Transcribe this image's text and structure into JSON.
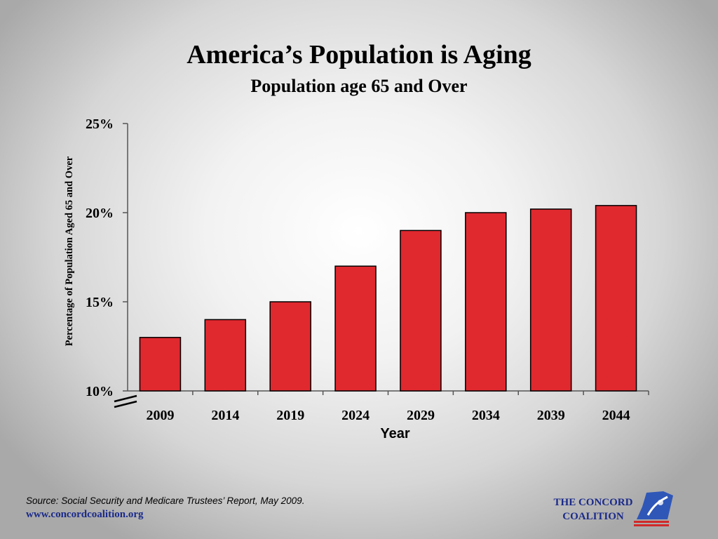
{
  "slide": {
    "title": "America’s Population is Aging",
    "subtitle": "Population age 65 and Over",
    "source": "Source: Social Security and Medicare Trustees’ Report, May 2009.",
    "website": "www.concordcoalition.org",
    "logo": {
      "line1": "THE CONCORD",
      "line2": "COALITION"
    }
  },
  "colors": {
    "bar": "#e0292f",
    "axis": "#555555",
    "logo_blue": "#1a2a8a",
    "logo_red": "#d02a2a"
  },
  "chart_data": {
    "type": "bar",
    "categories": [
      "2009",
      "2014",
      "2019",
      "2024",
      "2029",
      "2034",
      "2039",
      "2044"
    ],
    "values": [
      13,
      14,
      15,
      17,
      19,
      20,
      20.2,
      20.4
    ],
    "xlabel": "Year",
    "ylabel": "Percentage of Population Aged 65 and Over",
    "ylim": [
      10,
      25
    ],
    "yticks": [
      10,
      15,
      20,
      25
    ],
    "ytick_labels": [
      "10%",
      "15%",
      "20%",
      "25%"
    ],
    "axis_break": true,
    "grid": false,
    "legend": "none"
  }
}
